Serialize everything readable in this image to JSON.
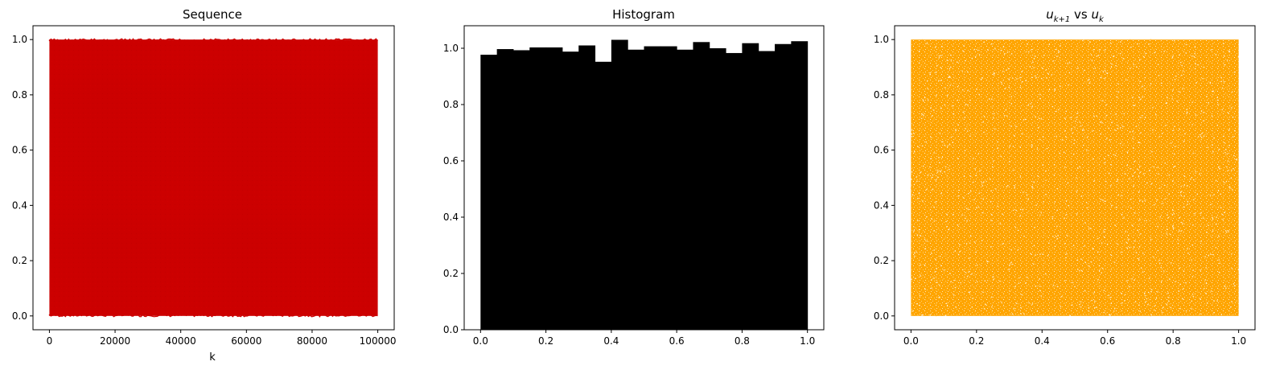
{
  "chart_data": [
    {
      "type": "line",
      "title": "Sequence",
      "xlabel": "k",
      "ylabel": "",
      "xlim": [
        -5000,
        105000
      ],
      "ylim": [
        -0.05,
        1.05
      ],
      "xticks": [
        0,
        20000,
        40000,
        60000,
        80000,
        100000
      ],
      "xtick_labels": [
        "0",
        "20000",
        "40000",
        "60000",
        "80000",
        "100000"
      ],
      "yticks": [
        0.0,
        0.2,
        0.4,
        0.6,
        0.8,
        1.0
      ],
      "ytick_labels": [
        "0.0",
        "0.2",
        "0.4",
        "0.6",
        "0.8",
        "1.0"
      ],
      "n_points": 100000,
      "value_range": [
        0.0,
        1.0
      ],
      "color": "#cc0000",
      "grid": false
    },
    {
      "type": "bar",
      "title": "Histogram",
      "xlabel": "",
      "ylabel": "",
      "xlim": [
        -0.05,
        1.05
      ],
      "ylim": [
        0.0,
        1.08
      ],
      "bin_edges": [
        0.0,
        0.05,
        0.1,
        0.15,
        0.2,
        0.25,
        0.3,
        0.35,
        0.4,
        0.45,
        0.5,
        0.55,
        0.6,
        0.65,
        0.7,
        0.75,
        0.8,
        0.85,
        0.9,
        0.95,
        1.0
      ],
      "values": [
        0.977,
        0.997,
        0.993,
        1.003,
        1.003,
        0.988,
        1.01,
        0.952,
        1.03,
        0.995,
        1.007,
        1.007,
        0.995,
        1.022,
        1.0,
        0.983,
        1.018,
        0.99,
        1.015,
        1.025
      ],
      "xticks": [
        0.0,
        0.2,
        0.4,
        0.6,
        0.8,
        1.0
      ],
      "xtick_labels": [
        "0.0",
        "0.2",
        "0.4",
        "0.6",
        "0.8",
        "1.0"
      ],
      "yticks": [
        0.0,
        0.2,
        0.4,
        0.6,
        0.8,
        1.0
      ],
      "ytick_labels": [
        "0.0",
        "0.2",
        "0.4",
        "0.6",
        "0.8",
        "1.0"
      ],
      "color": "#000000",
      "grid": false
    },
    {
      "type": "scatter",
      "title_parts": [
        "u",
        "k+1",
        " vs ",
        "u",
        "k"
      ],
      "xlabel": "",
      "ylabel": "",
      "xlim": [
        -0.05,
        1.05
      ],
      "ylim": [
        -0.05,
        1.05
      ],
      "xticks": [
        0.0,
        0.2,
        0.4,
        0.6,
        0.8,
        1.0
      ],
      "xtick_labels": [
        "0.0",
        "0.2",
        "0.4",
        "0.6",
        "0.8",
        "1.0"
      ],
      "yticks": [
        0.0,
        0.2,
        0.4,
        0.6,
        0.8,
        1.0
      ],
      "ytick_labels": [
        "0.0",
        "0.2",
        "0.4",
        "0.6",
        "0.8",
        "1.0"
      ],
      "value_range": [
        0.0,
        1.0
      ],
      "color": "#ffa500",
      "grid": false
    }
  ]
}
